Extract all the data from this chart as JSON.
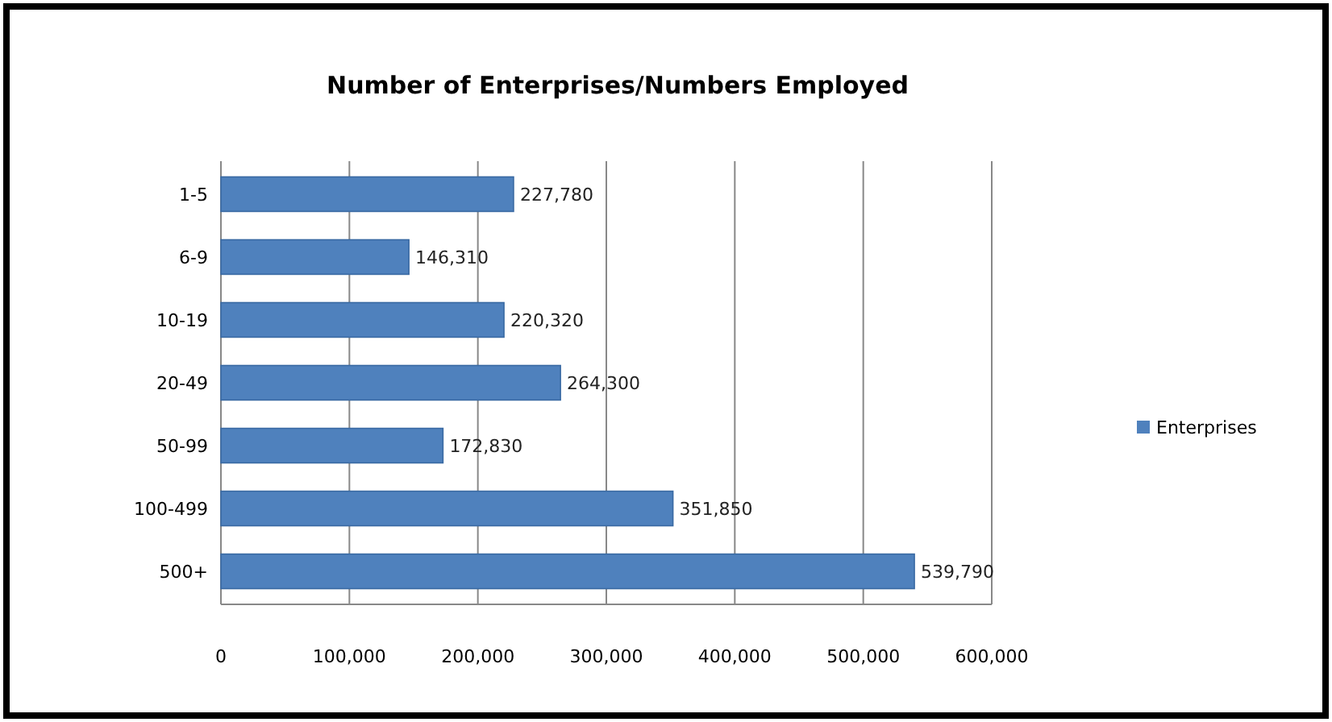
{
  "chart_data": {
    "type": "bar",
    "orientation": "horizontal",
    "title": "Number of Enterprises/Numbers Employed",
    "categories": [
      "1-5",
      "6-9",
      "10-19",
      "20-49",
      "50-99",
      "100-499",
      "500+"
    ],
    "series": [
      {
        "name": "Enterprises",
        "color": "#4f81bd",
        "values": [
          227780,
          146310,
          220320,
          264300,
          172830,
          351850,
          539790
        ],
        "value_labels": [
          "227,780",
          "146,310",
          "220,320",
          "264,300",
          "172,830",
          "351,850",
          "539,790"
        ]
      }
    ],
    "xlim": [
      0,
      600000
    ],
    "xticks": [
      0,
      {
        "value": 100000,
        "label": "100,000"
      },
      {
        "value": 200000,
        "label": "200,000"
      },
      {
        "value": 300000,
        "label": "300,000"
      },
      {
        "value": 400000,
        "label": "400,000"
      },
      {
        "value": 500000,
        "label": "500,000"
      },
      {
        "value": 600000,
        "label": "600,000"
      }
    ],
    "grid": "x",
    "legend": "right"
  }
}
